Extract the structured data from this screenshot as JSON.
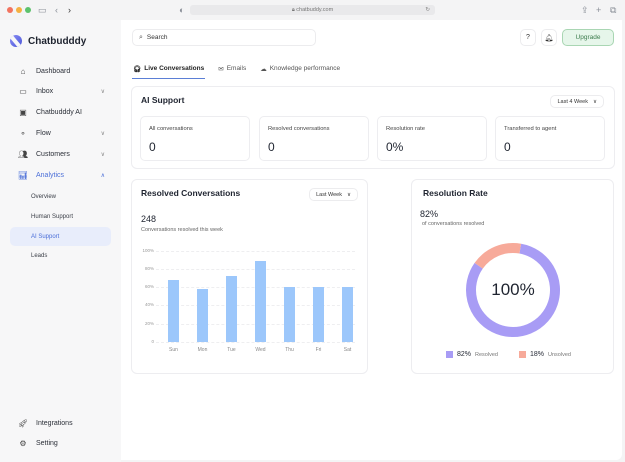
{
  "browser": {
    "url": "chatbuddy.com",
    "traffic_lights": [
      "#f2735f",
      "#f5b041",
      "#5cc26c"
    ]
  },
  "app": {
    "name": "Chatbudddy"
  },
  "sidebar": {
    "items": [
      {
        "label": "Dashboard",
        "icon": "home-icon",
        "expandable": false
      },
      {
        "label": "Inbox",
        "icon": "inbox-icon",
        "expandable": true
      },
      {
        "label": "Chatbudddy AI",
        "icon": "bot-icon",
        "expandable": false
      },
      {
        "label": "Flow",
        "icon": "flow-icon",
        "expandable": true
      },
      {
        "label": "Customers",
        "icon": "users-icon",
        "expandable": true
      },
      {
        "label": "Analytics",
        "icon": "chart-icon",
        "expandable": true,
        "expanded": true,
        "active": true
      }
    ],
    "analytics_sub": [
      {
        "label": "Overview"
      },
      {
        "label": "Human Support"
      },
      {
        "label": "AI Support",
        "selected": true
      },
      {
        "label": "Leads"
      }
    ],
    "bottom": [
      {
        "label": "Integrations",
        "icon": "rocket-icon"
      },
      {
        "label": "Setting",
        "icon": "gear-icon"
      }
    ]
  },
  "header": {
    "search_placeholder": "Search",
    "upgrade_label": "Upgrade"
  },
  "tabs": [
    {
      "label": "Live Conversations",
      "icon": "headset-icon",
      "active": true
    },
    {
      "label": "Emails",
      "icon": "mail-icon"
    },
    {
      "label": "Knowledge performance",
      "icon": "cloud-icon"
    }
  ],
  "ai_support": {
    "title": "AI Support",
    "period": "Last 4 Week",
    "stats": [
      {
        "label": "All conversations",
        "value": "0"
      },
      {
        "label": "Resolved conversations",
        "value": "0"
      },
      {
        "label": "Resolution rate",
        "value": "0%"
      },
      {
        "label": "Transferred to agent",
        "value": "0"
      }
    ]
  },
  "resolved": {
    "title": "Resolved Conversations",
    "period": "Last Week",
    "count": "248",
    "subtitle": "Conversations resolved this week"
  },
  "resolution_rate": {
    "title": "Resolution Rate",
    "value": "82%",
    "subtitle": "of conversations resolved",
    "center_label": "100%",
    "legend": [
      {
        "pct": "82%",
        "label": "Resolved",
        "color": "#a89cf5"
      },
      {
        "pct": "18%",
        "label": "Unsolved",
        "color": "#f7aa9a"
      }
    ]
  },
  "chart_data": [
    {
      "type": "bar",
      "title": "Resolved Conversations",
      "categories": [
        "Sun",
        "Mon",
        "Tue",
        "Wed",
        "Thu",
        "Fri",
        "Sat"
      ],
      "values": [
        68,
        58,
        72,
        89,
        60,
        60,
        60
      ],
      "yticks": [
        "0",
        "20%",
        "40%",
        "60%",
        "80%",
        "100%"
      ],
      "ylim": [
        0,
        100
      ],
      "xlabel": "",
      "ylabel": "",
      "grid": true,
      "color": "#9cc7fb"
    },
    {
      "type": "pie",
      "title": "Resolution Rate",
      "donut": true,
      "categories": [
        "Resolved",
        "Unsolved"
      ],
      "values": [
        82,
        18
      ],
      "colors": [
        "#a89cf5",
        "#f7aa9a"
      ],
      "center_label": "100%"
    }
  ]
}
